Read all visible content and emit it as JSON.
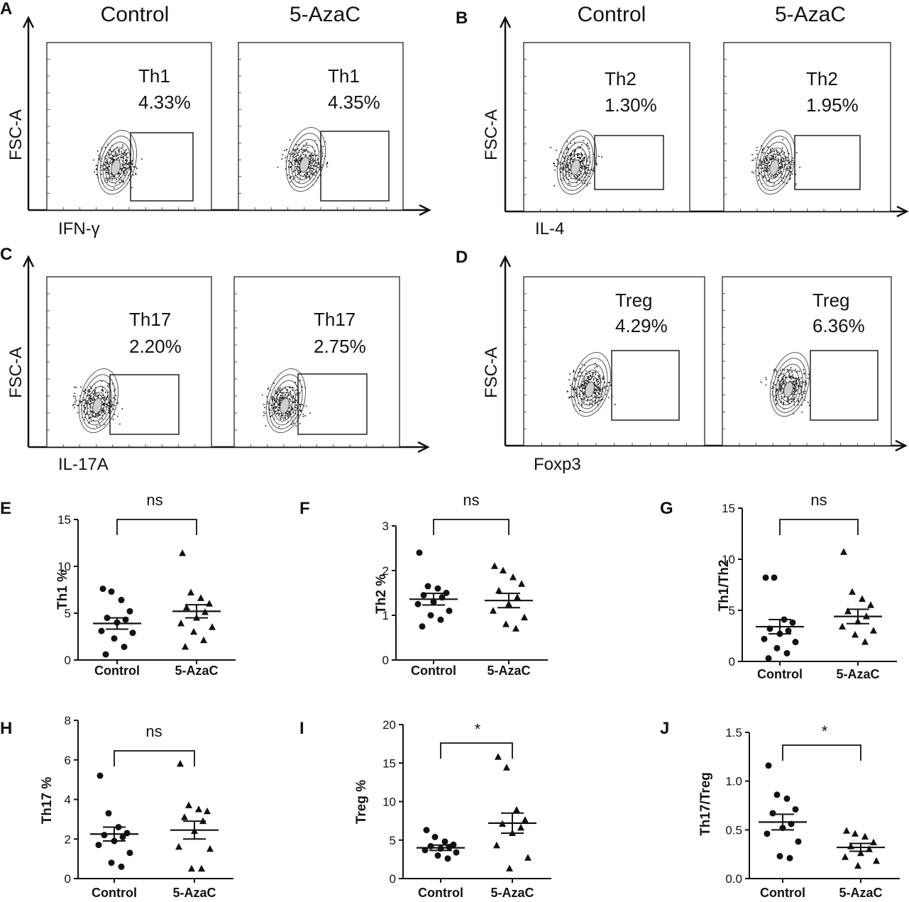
{
  "figure": {
    "group_labels": [
      "Control",
      "5-AzaC"
    ],
    "y_axis_label": "FSC-A"
  },
  "chart_data": [
    {
      "panel": "A",
      "type": "scatter",
      "subtype": "flow-cytometry-contour",
      "title_left": "Control",
      "title_right": "5-AzaC",
      "xlabel": "IFN-γ",
      "ylabel": "FSC-A",
      "gates": [
        {
          "group": "Control",
          "population": "Th1",
          "percent": "4.33%"
        },
        {
          "group": "5-AzaC",
          "population": "Th1",
          "percent": "4.35%"
        }
      ]
    },
    {
      "panel": "B",
      "type": "scatter",
      "subtype": "flow-cytometry-contour",
      "title_left": "Control",
      "title_right": "5-AzaC",
      "xlabel": "IL-4",
      "ylabel": "FSC-A",
      "gates": [
        {
          "group": "Control",
          "population": "Th2",
          "percent": "1.30%"
        },
        {
          "group": "5-AzaC",
          "population": "Th2",
          "percent": "1.95%"
        }
      ]
    },
    {
      "panel": "C",
      "type": "scatter",
      "subtype": "flow-cytometry-contour",
      "title_left": "",
      "title_right": "",
      "xlabel": "IL-17A",
      "ylabel": "FSC-A",
      "gates": [
        {
          "group": "Control",
          "population": "Th17",
          "percent": "2.20%"
        },
        {
          "group": "5-AzaC",
          "population": "Th17",
          "percent": "2.75%"
        }
      ]
    },
    {
      "panel": "D",
      "type": "scatter",
      "subtype": "flow-cytometry-contour",
      "title_left": "",
      "title_right": "",
      "xlabel": "Foxp3",
      "ylabel": "FSC-A",
      "gates": [
        {
          "group": "Control",
          "population": "Treg",
          "percent": "4.29%"
        },
        {
          "group": "5-AzaC",
          "population": "Treg",
          "percent": "6.36%"
        }
      ]
    },
    {
      "panel": "E",
      "type": "scatter",
      "subtype": "dot-plot-mean-sem",
      "ylabel": "Th1 %",
      "categories": [
        "Control",
        "5-AzaC"
      ],
      "ylim": [
        0,
        15
      ],
      "yticks": [
        0,
        5,
        10,
        15
      ],
      "significance": "ns",
      "series": [
        {
          "name": "Control",
          "marker": "circle",
          "mean": 3.9,
          "sem": 0.6,
          "values": [
            7.6,
            7.3,
            6.4,
            5.2,
            4.5,
            4.3,
            4.0,
            3.1,
            2.9,
            2.3,
            1.4,
            0.6
          ]
        },
        {
          "name": "5-AzaC",
          "marker": "triangle",
          "mean": 5.2,
          "sem": 0.7,
          "values": [
            11.4,
            7.2,
            6.6,
            6.0,
            5.6,
            5.1,
            4.5,
            3.9,
            3.5,
            3.0,
            2.1,
            1.4
          ]
        }
      ]
    },
    {
      "panel": "F",
      "type": "scatter",
      "subtype": "dot-plot-mean-sem",
      "ylabel": "Th2 %",
      "categories": [
        "Control",
        "5-AzaC"
      ],
      "ylim": [
        0,
        3
      ],
      "yticks": [
        0,
        1,
        2,
        3
      ],
      "significance": "ns",
      "series": [
        {
          "name": "Control",
          "marker": "circle",
          "mean": 1.36,
          "sem": 0.13,
          "values": [
            2.4,
            1.65,
            1.6,
            1.5,
            1.45,
            1.4,
            1.3,
            1.25,
            1.1,
            1.0,
            0.9,
            0.75
          ]
        },
        {
          "name": "5-AzaC",
          "marker": "triangle",
          "mean": 1.33,
          "sem": 0.16,
          "values": [
            2.1,
            2.0,
            1.85,
            1.7,
            1.55,
            1.4,
            1.25,
            1.1,
            0.95,
            0.8,
            0.7
          ]
        }
      ]
    },
    {
      "panel": "G",
      "type": "scatter",
      "subtype": "dot-plot-mean-sem",
      "ylabel": "Th1/Th2",
      "categories": [
        "Control",
        "5-AzaC"
      ],
      "ylim": [
        0,
        15
      ],
      "yticks": [
        0,
        5,
        10,
        15
      ],
      "significance": "ns",
      "series": [
        {
          "name": "Control",
          "marker": "circle",
          "mean": 3.4,
          "sem": 0.7,
          "values": [
            8.2,
            8.2,
            4.1,
            3.8,
            3.2,
            3.0,
            2.7,
            2.2,
            1.9,
            1.3,
            0.8,
            0.3
          ]
        },
        {
          "name": "5-AzaC",
          "marker": "triangle",
          "mean": 4.4,
          "sem": 0.7,
          "values": [
            10.7,
            6.8,
            6.1,
            5.5,
            4.9,
            4.4,
            3.9,
            3.4,
            3.0,
            2.6,
            1.9
          ]
        }
      ]
    },
    {
      "panel": "H",
      "type": "scatter",
      "subtype": "dot-plot-mean-sem",
      "ylabel": "Th17 %",
      "categories": [
        "Control",
        "5-AzaC"
      ],
      "ylim": [
        0,
        8
      ],
      "yticks": [
        0,
        2,
        4,
        6,
        8
      ],
      "significance": "ns",
      "series": [
        {
          "name": "Control",
          "marker": "circle",
          "mean": 2.25,
          "sem": 0.35,
          "values": [
            5.2,
            3.3,
            2.6,
            2.3,
            2.2,
            2.1,
            1.9,
            1.7,
            1.3,
            0.8,
            0.6
          ]
        },
        {
          "name": "5-AzaC",
          "marker": "triangle",
          "mean": 2.45,
          "sem": 0.45,
          "values": [
            5.8,
            3.7,
            3.5,
            3.4,
            3.1,
            2.9,
            2.4,
            1.6,
            1.5,
            0.5,
            0.5
          ]
        }
      ]
    },
    {
      "panel": "I",
      "type": "scatter",
      "subtype": "dot-plot-mean-sem",
      "ylabel": "Treg %",
      "categories": [
        "Control",
        "5-AzaC"
      ],
      "ylim": [
        0,
        20
      ],
      "yticks": [
        0,
        5,
        10,
        15,
        20
      ],
      "significance": "*",
      "series": [
        {
          "name": "Control",
          "marker": "circle",
          "mean": 4.0,
          "sem": 0.35,
          "values": [
            6.3,
            5.4,
            4.8,
            4.4,
            4.2,
            4.1,
            3.9,
            3.7,
            3.4,
            3.0,
            2.6
          ]
        },
        {
          "name": "5-AzaC",
          "marker": "triangle",
          "mean": 7.2,
          "sem": 1.3,
          "values": [
            15.8,
            14.4,
            8.9,
            7.6,
            7.1,
            6.6,
            5.9,
            4.3,
            2.7,
            1.3
          ]
        }
      ]
    },
    {
      "panel": "J",
      "type": "scatter",
      "subtype": "dot-plot-mean-sem",
      "ylabel": "Th17/Treg",
      "categories": [
        "Control",
        "5-AzaC"
      ],
      "ylim": [
        0,
        1.5
      ],
      "yticks": [
        "0.0",
        "0.5",
        "1.0",
        "1.5"
      ],
      "significance": "*",
      "series": [
        {
          "name": "Control",
          "marker": "circle",
          "mean": 0.58,
          "sem": 0.08,
          "values": [
            1.16,
            0.86,
            0.82,
            0.71,
            0.67,
            0.56,
            0.52,
            0.46,
            0.38,
            0.23,
            0.21
          ]
        },
        {
          "name": "5-AzaC",
          "marker": "triangle",
          "mean": 0.32,
          "sem": 0.04,
          "values": [
            0.49,
            0.46,
            0.43,
            0.37,
            0.33,
            0.3,
            0.26,
            0.22,
            0.18,
            0.13
          ]
        }
      ]
    }
  ]
}
